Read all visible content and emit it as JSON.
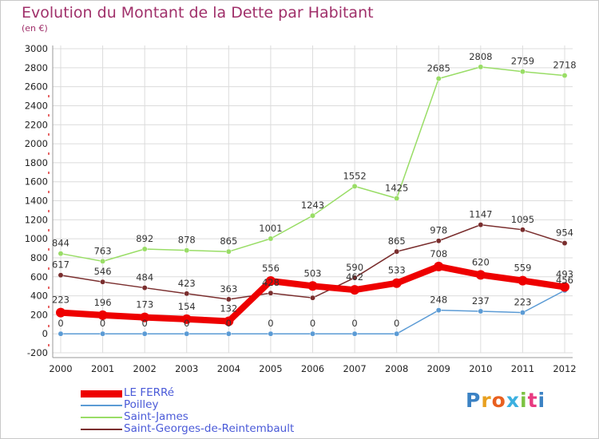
{
  "chart_data": {
    "type": "line",
    "title": "Evolution du Montant de la Dette par Habitant",
    "subtitle": "(en €)",
    "x": [
      "2000",
      "2001",
      "2002",
      "2003",
      "2004",
      "2005",
      "2006",
      "2007",
      "2008",
      "2009",
      "2010",
      "2011",
      "2012"
    ],
    "ylim": [
      -200,
      3000
    ],
    "yticks": [
      -200,
      0,
      200,
      400,
      600,
      800,
      1000,
      1200,
      1400,
      1600,
      1800,
      2000,
      2200,
      2400,
      2600,
      2800,
      3000
    ],
    "grid": true,
    "legend_position": "bottom-left",
    "series": [
      {
        "name": "LE FERRé",
        "color": "#ee0000",
        "values": [
          223,
          196,
          173,
          154,
          132,
          556,
          503,
          462,
          533,
          708,
          620,
          559,
          493
        ],
        "labels": [
          "223",
          "196",
          "173",
          "154",
          "132",
          "556",
          "503",
          "462",
          "533",
          "708",
          "620",
          "559",
          "493"
        ]
      },
      {
        "name": "Poilley",
        "color": "#5b9bd5",
        "values": [
          0,
          0,
          0,
          0,
          0,
          0,
          0,
          0,
          0,
          248,
          237,
          223,
          456
        ],
        "labels": [
          "0",
          "0",
          "0",
          "0",
          "0",
          "0",
          "0",
          "0",
          "0",
          "248",
          "237",
          "223",
          "456"
        ]
      },
      {
        "name": "Saint-James",
        "color": "#99dd66",
        "values": [
          844,
          763,
          892,
          878,
          865,
          1001,
          1243,
          1552,
          1425,
          2685,
          2808,
          2759,
          2718
        ],
        "labels": [
          "844",
          "763",
          "892",
          "878",
          "865",
          "1001",
          "1243",
          "1552",
          "1425",
          "2685",
          "2808",
          "2759",
          "2718"
        ]
      },
      {
        "name": "Saint-Georges-de-Reintembault",
        "color": "#7a2e2e",
        "values": [
          617,
          546,
          484,
          423,
          363,
          428,
          378,
          590,
          865,
          978,
          1147,
          1095,
          954
        ],
        "labels": [
          "617",
          "546",
          "484",
          "423",
          "363",
          "428",
          "",
          "590",
          "865",
          "978",
          "1147",
          "1095",
          "954"
        ]
      }
    ]
  },
  "logo": {
    "letters": [
      "P",
      "r",
      "o",
      "x",
      "i",
      "t",
      "i"
    ],
    "colors": [
      "#3b82c4",
      "#e8a020",
      "#e86020",
      "#3bb0e0",
      "#7cc242",
      "#e83a80",
      "#3b82c4"
    ]
  }
}
